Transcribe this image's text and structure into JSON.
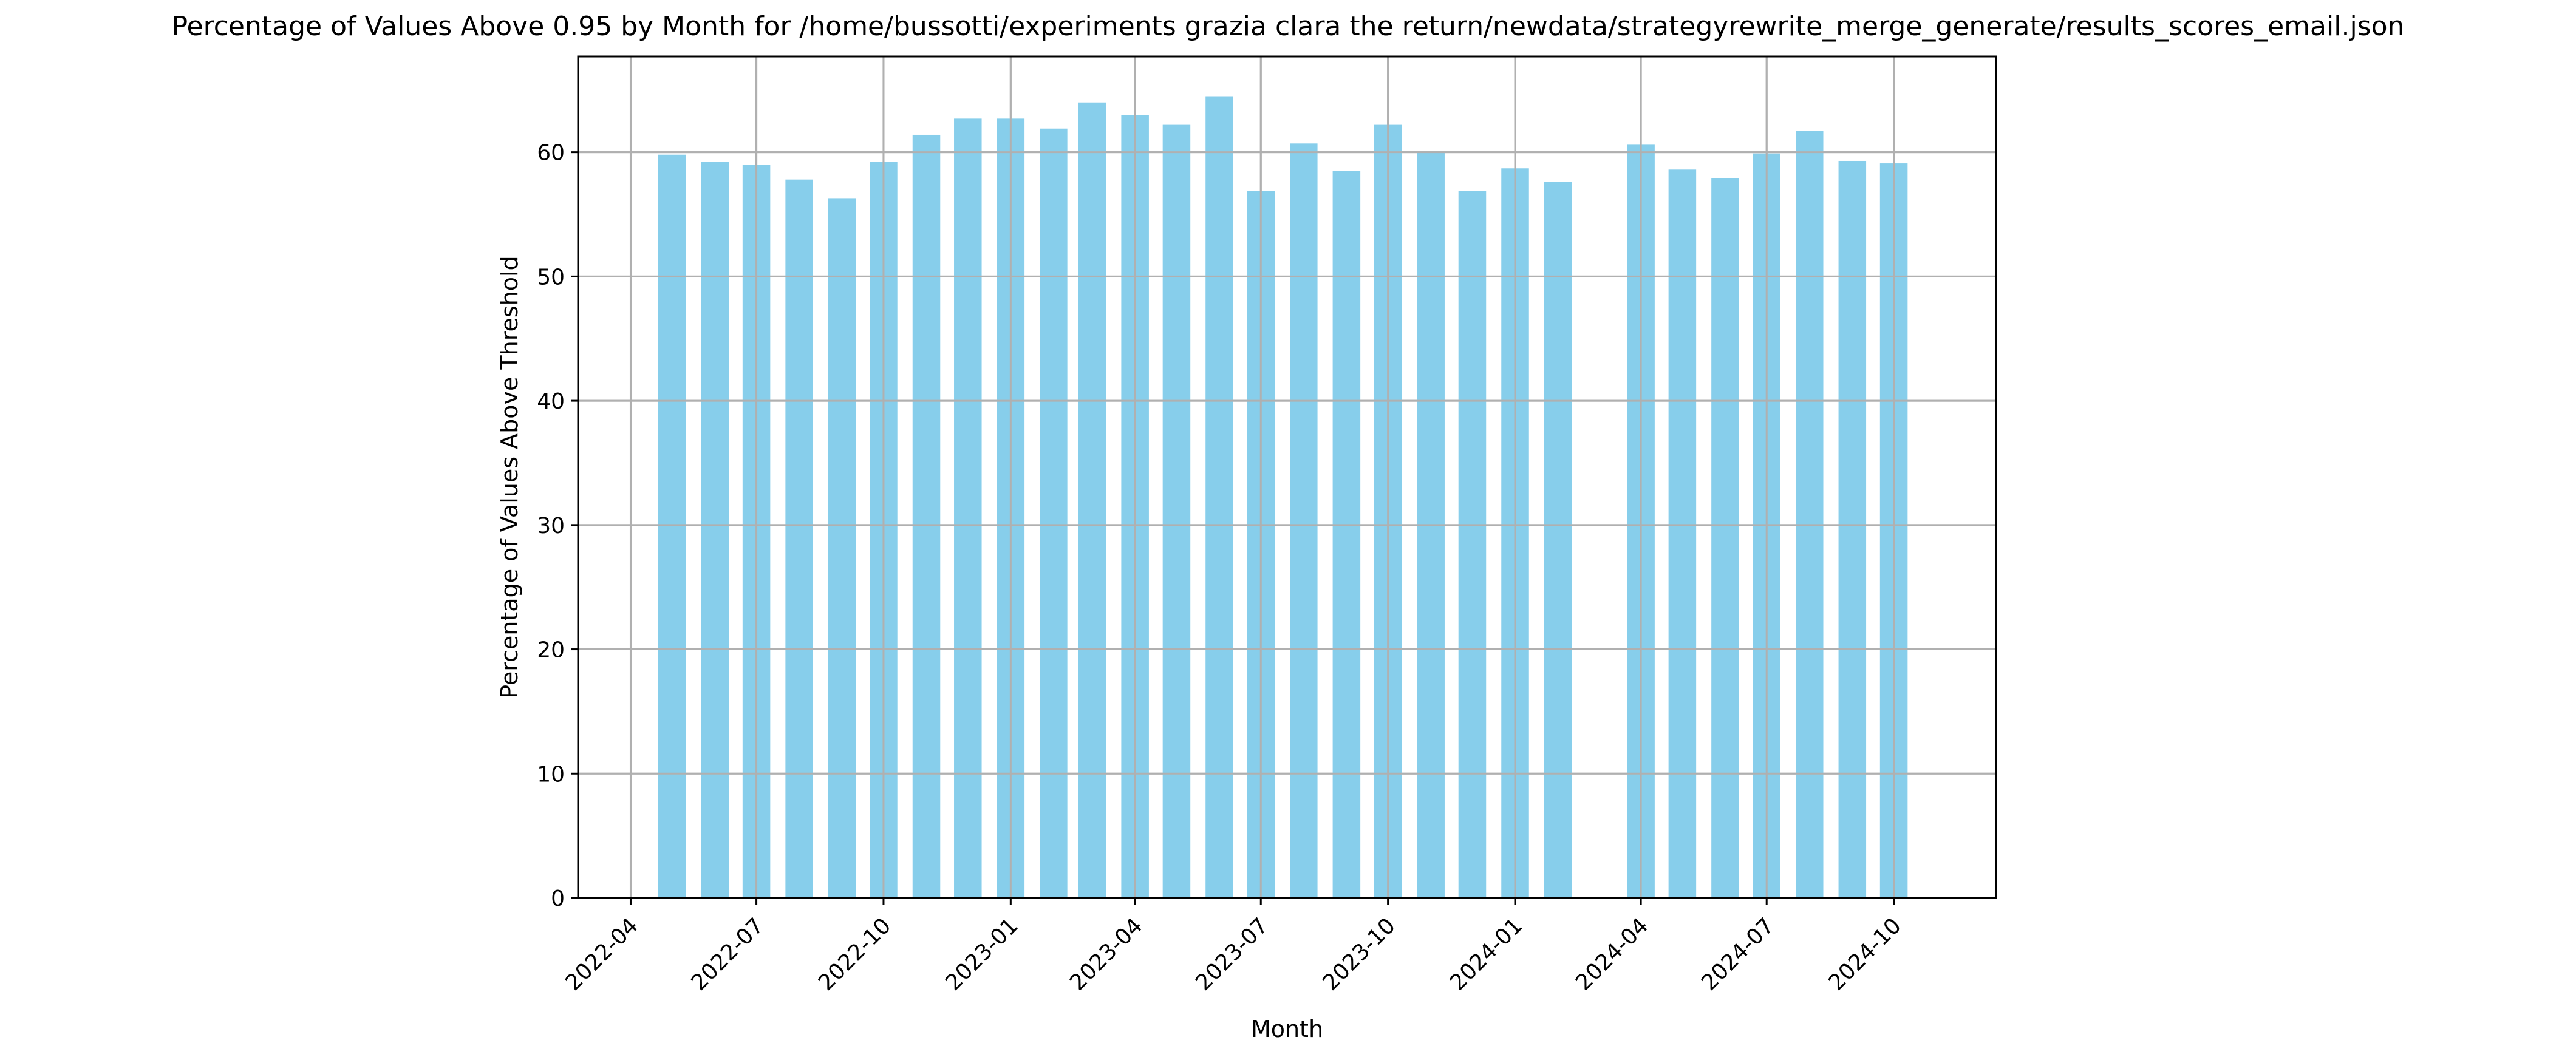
{
  "chart_data": {
    "type": "bar",
    "title": "Percentage of Values Above 0.95 by Month for /home/bussotti/experiments grazia clara the return/newdata/strategyrewrite_merge_generate/results_scores_email.json",
    "xlabel": "Month",
    "ylabel": "Percentage of Values Above Threshold",
    "x": [
      "2022-05",
      "2022-06",
      "2022-07",
      "2022-08",
      "2022-09",
      "2022-10",
      "2022-11",
      "2022-12",
      "2023-01",
      "2023-02",
      "2023-03",
      "2023-04",
      "2023-05",
      "2023-06",
      "2023-07",
      "2023-08",
      "2023-09",
      "2023-10",
      "2023-11",
      "2023-12",
      "2024-01",
      "2024-02",
      "2024-04",
      "2024-05",
      "2024-06",
      "2024-07",
      "2024-08",
      "2024-09",
      "2024-10"
    ],
    "values": [
      59.8,
      59.2,
      59.0,
      57.8,
      56.3,
      59.2,
      61.4,
      62.7,
      62.7,
      61.9,
      64.0,
      63.0,
      62.2,
      64.5,
      56.9,
      60.7,
      58.5,
      62.2,
      60.0,
      56.9,
      58.7,
      57.6,
      60.6,
      58.6,
      57.9,
      59.9,
      61.7,
      59.3,
      59.1
    ],
    "xticks": [
      "2022-04",
      "2022-07",
      "2022-10",
      "2023-01",
      "2023-04",
      "2023-07",
      "2023-10",
      "2024-01",
      "2024-04",
      "2024-07",
      "2024-10"
    ],
    "yticks": [
      0,
      10,
      20,
      30,
      40,
      50,
      60
    ],
    "xlim": [
      "2022-02-22",
      "2024-12-14"
    ],
    "ylim": [
      0,
      67.7
    ],
    "grid": true,
    "bar_color": "#87ceeb",
    "grid_color": "#b0b0b0"
  }
}
